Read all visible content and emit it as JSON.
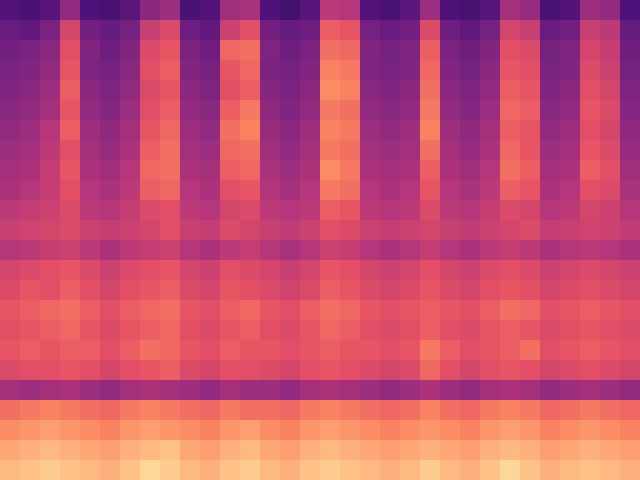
{
  "chart_data": {
    "type": "heatmap",
    "tick_labels": false,
    "zlim": [
      0,
      100
    ],
    "cells": [
      [
        26,
        24,
        27,
        42,
        25,
        23,
        28,
        40,
        44,
        24,
        26,
        45,
        47,
        25,
        22,
        27,
        52,
        50,
        26,
        24,
        28,
        44,
        25,
        23,
        27,
        46,
        43,
        24,
        26,
        44,
        42,
        25
      ],
      [
        32,
        30,
        36,
        58,
        34,
        31,
        35,
        55,
        60,
        33,
        30,
        56,
        62,
        34,
        31,
        33,
        66,
        64,
        35,
        32,
        34,
        60,
        33,
        30,
        35,
        58,
        55,
        32,
        34,
        55,
        52,
        31
      ],
      [
        34,
        36,
        40,
        62,
        38,
        33,
        38,
        60,
        64,
        36,
        33,
        68,
        70,
        37,
        33,
        36,
        70,
        68,
        38,
        35,
        37,
        66,
        36,
        33,
        38,
        62,
        60,
        35,
        37,
        58,
        54,
        33
      ],
      [
        36,
        38,
        42,
        64,
        37,
        35,
        40,
        62,
        66,
        38,
        35,
        64,
        68,
        36,
        35,
        38,
        74,
        72,
        37,
        36,
        38,
        68,
        38,
        35,
        40,
        64,
        62,
        36,
        38,
        60,
        56,
        35
      ],
      [
        38,
        40,
        44,
        66,
        40,
        37,
        42,
        60,
        64,
        40,
        37,
        62,
        66,
        39,
        36,
        40,
        76,
        74,
        40,
        38,
        40,
        70,
        40,
        37,
        42,
        66,
        64,
        38,
        40,
        62,
        58,
        37
      ],
      [
        40,
        42,
        46,
        64,
        42,
        39,
        44,
        62,
        66,
        42,
        40,
        66,
        72,
        41,
        38,
        42,
        72,
        70,
        42,
        40,
        42,
        72,
        42,
        39,
        44,
        68,
        66,
        40,
        42,
        64,
        60,
        39
      ],
      [
        42,
        44,
        50,
        66,
        44,
        41,
        46,
        64,
        68,
        44,
        42,
        70,
        74,
        43,
        40,
        44,
        74,
        72,
        44,
        42,
        44,
        74,
        44,
        41,
        46,
        66,
        64,
        42,
        44,
        62,
        58,
        41
      ],
      [
        44,
        46,
        52,
        62,
        46,
        43,
        48,
        66,
        70,
        46,
        44,
        68,
        70,
        45,
        42,
        46,
        72,
        70,
        46,
        44,
        46,
        70,
        46,
        43,
        48,
        68,
        64,
        44,
        46,
        64,
        60,
        43
      ],
      [
        46,
        48,
        54,
        64,
        48,
        45,
        50,
        68,
        70,
        48,
        46,
        66,
        68,
        47,
        44,
        48,
        76,
        72,
        48,
        46,
        48,
        66,
        48,
        45,
        50,
        70,
        66,
        46,
        48,
        66,
        62,
        45
      ],
      [
        48,
        50,
        54,
        62,
        50,
        47,
        52,
        66,
        68,
        50,
        48,
        62,
        64,
        49,
        46,
        50,
        72,
        70,
        50,
        48,
        50,
        64,
        50,
        47,
        52,
        66,
        64,
        48,
        50,
        62,
        60,
        47
      ],
      [
        52,
        54,
        56,
        60,
        52,
        50,
        54,
        60,
        62,
        52,
        50,
        58,
        60,
        52,
        50,
        52,
        66,
        64,
        52,
        50,
        52,
        60,
        52,
        50,
        54,
        60,
        58,
        50,
        52,
        58,
        56,
        50
      ],
      [
        55,
        57,
        58,
        60,
        56,
        54,
        56,
        58,
        62,
        55,
        54,
        60,
        58,
        55,
        53,
        56,
        62,
        60,
        56,
        54,
        56,
        58,
        55,
        53,
        56,
        58,
        60,
        54,
        55,
        57,
        56,
        53
      ],
      [
        50,
        52,
        54,
        56,
        52,
        48,
        52,
        54,
        56,
        50,
        48,
        52,
        54,
        50,
        47,
        50,
        56,
        54,
        50,
        48,
        50,
        54,
        50,
        48,
        52,
        54,
        52,
        48,
        50,
        52,
        50,
        48
      ],
      [
        58,
        60,
        62,
        64,
        60,
        56,
        60,
        62,
        64,
        58,
        56,
        62,
        60,
        58,
        55,
        58,
        64,
        62,
        58,
        56,
        58,
        62,
        58,
        56,
        60,
        62,
        60,
        56,
        58,
        60,
        58,
        56
      ],
      [
        60,
        64,
        62,
        66,
        62,
        58,
        62,
        64,
        66,
        60,
        58,
        64,
        62,
        60,
        57,
        60,
        66,
        64,
        60,
        58,
        60,
        64,
        60,
        58,
        62,
        64,
        62,
        58,
        60,
        62,
        60,
        58
      ],
      [
        64,
        66,
        68,
        70,
        66,
        62,
        66,
        68,
        70,
        64,
        62,
        66,
        68,
        64,
        62,
        66,
        70,
        68,
        64,
        62,
        64,
        66,
        64,
        62,
        66,
        70,
        68,
        62,
        64,
        66,
        64,
        62
      ],
      [
        62,
        64,
        66,
        68,
        64,
        60,
        64,
        66,
        68,
        62,
        60,
        64,
        66,
        62,
        60,
        64,
        68,
        66,
        62,
        60,
        62,
        66,
        62,
        60,
        64,
        66,
        64,
        60,
        62,
        64,
        62,
        60
      ],
      [
        64,
        66,
        64,
        66,
        66,
        62,
        66,
        70,
        68,
        64,
        62,
        66,
        64,
        64,
        62,
        64,
        66,
        64,
        64,
        62,
        64,
        72,
        66,
        62,
        64,
        66,
        70,
        62,
        64,
        66,
        64,
        62
      ],
      [
        60,
        62,
        62,
        64,
        62,
        58,
        62,
        64,
        66,
        60,
        58,
        62,
        62,
        60,
        58,
        62,
        64,
        62,
        60,
        58,
        60,
        68,
        62,
        58,
        62,
        64,
        62,
        58,
        60,
        62,
        60,
        58
      ],
      [
        46,
        44,
        46,
        48,
        44,
        42,
        46,
        48,
        46,
        44,
        42,
        46,
        44,
        44,
        42,
        46,
        48,
        46,
        44,
        42,
        44,
        48,
        44,
        42,
        46,
        48,
        46,
        42,
        44,
        46,
        44,
        42
      ],
      [
        70,
        72,
        74,
        72,
        70,
        68,
        72,
        74,
        72,
        70,
        68,
        72,
        70,
        70,
        68,
        72,
        74,
        72,
        70,
        68,
        70,
        74,
        70,
        68,
        72,
        74,
        72,
        68,
        70,
        72,
        70,
        68
      ],
      [
        76,
        78,
        80,
        78,
        76,
        74,
        78,
        80,
        78,
        76,
        74,
        78,
        80,
        76,
        74,
        78,
        80,
        78,
        76,
        74,
        76,
        78,
        76,
        74,
        78,
        80,
        78,
        74,
        76,
        78,
        76,
        74
      ],
      [
        82,
        84,
        86,
        84,
        82,
        80,
        84,
        86,
        88,
        82,
        80,
        84,
        86,
        82,
        80,
        84,
        86,
        84,
        82,
        80,
        82,
        84,
        82,
        80,
        84,
        86,
        84,
        80,
        82,
        84,
        82,
        80
      ],
      [
        86,
        88,
        90,
        88,
        86,
        84,
        88,
        92,
        90,
        86,
        84,
        88,
        90,
        86,
        84,
        88,
        90,
        88,
        86,
        84,
        86,
        90,
        86,
        84,
        88,
        92,
        88,
        84,
        86,
        88,
        86,
        84
      ]
    ]
  }
}
